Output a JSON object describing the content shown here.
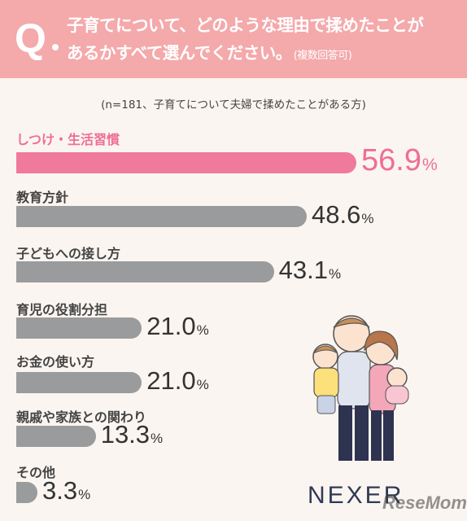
{
  "header": {
    "q_mark": "Q",
    "line1": "子育てについて、どのような理由で揉めたことが",
    "line2": "あるかすべて選んでください。",
    "note": "(複数回答可)"
  },
  "subtitle": "(n=181、子育てについて夫婦で揉めたことがある方)",
  "logo": "NEXER",
  "watermark": "ReseMom",
  "colors": {
    "header": "#f4a9ab",
    "highlight": "#f07a9b",
    "bar": "#9a9b9d"
  },
  "chart_data": {
    "type": "bar",
    "orientation": "horizontal",
    "categories": [
      "しつけ・生活習慣",
      "教育方針",
      "子どもへの接し方",
      "育児の役割分担",
      "お金の使い方",
      "親戚や家族との関わり",
      "その他"
    ],
    "values": [
      56.9,
      48.6,
      43.1,
      21.0,
      21.0,
      13.3,
      3.3
    ],
    "labels": [
      "56.9",
      "48.6",
      "43.1",
      "21.0",
      "21.0",
      "13.3",
      "3.3"
    ],
    "unit": "%",
    "highlight_index": 0
  }
}
